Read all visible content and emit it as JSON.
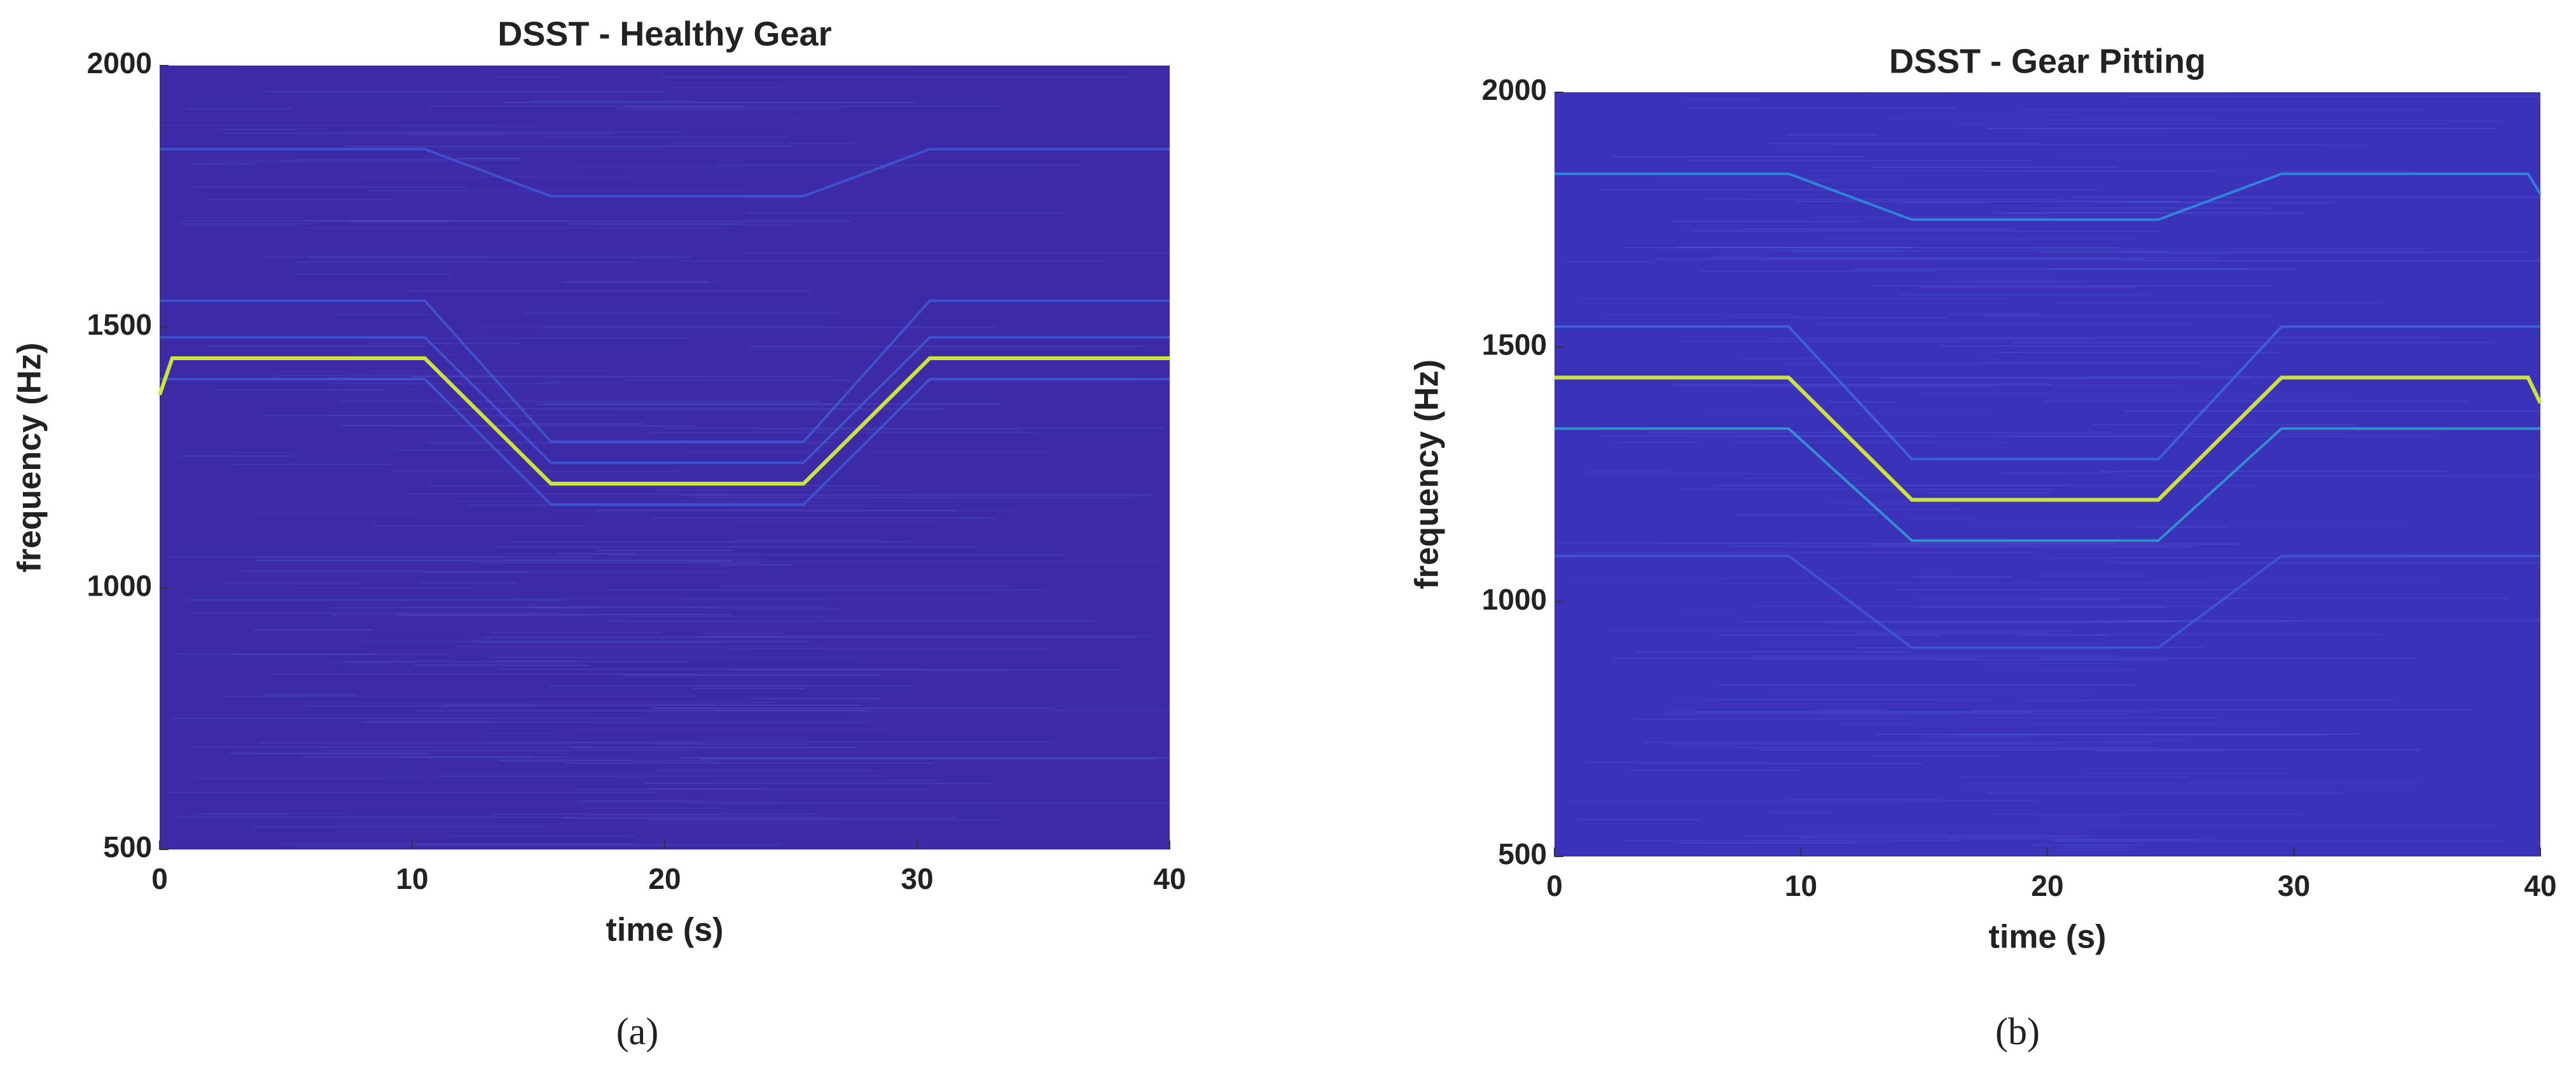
{
  "chart_data": [
    {
      "type": "spectrogram",
      "title": "DSST - Healthy Gear",
      "xlabel": "time (s)",
      "ylabel": "frequency (Hz)",
      "panel_label": "(a)",
      "xlim": [
        0,
        40
      ],
      "ylim": [
        500,
        2000
      ],
      "xticks": [
        0,
        10,
        20,
        30,
        40
      ],
      "yticks": [
        500,
        1000,
        1500,
        2000
      ],
      "background": "#3d2aa6",
      "x": [
        0,
        0.5,
        10.5,
        15.5,
        25.5,
        30.5,
        40
      ],
      "series": [
        {
          "color": "#3f5fd8",
          "values": [
            1840,
            1840,
            1840,
            1750,
            1750,
            1840,
            1840
          ]
        },
        {
          "color": "#3f5fd8",
          "values": [
            1550,
            1550,
            1550,
            1280,
            1280,
            1550,
            1550
          ]
        },
        {
          "color": "#3f5fd8",
          "values": [
            1480,
            1480,
            1480,
            1240,
            1240,
            1480,
            1480
          ]
        },
        {
          "color": "#3f5fd8",
          "values": [
            1400,
            1400,
            1400,
            1160,
            1160,
            1400,
            1400
          ]
        },
        {
          "color": "#cde23a",
          "values": [
            1370,
            1440,
            1440,
            1200,
            1200,
            1440,
            1440
          ]
        }
      ]
    },
    {
      "type": "spectrogram",
      "title": "DSST - Gear Pitting",
      "xlabel": "time (s)",
      "ylabel": "frequency (Hz)",
      "panel_label": "(b)",
      "xlim": [
        0,
        40
      ],
      "ylim": [
        500,
        2000
      ],
      "xticks": [
        0,
        10,
        20,
        30,
        40
      ],
      "yticks": [
        500,
        1000,
        1500,
        2000
      ],
      "background": "#3a32b8",
      "x": [
        0,
        9.5,
        14.5,
        24.5,
        29.5,
        39.5,
        40
      ],
      "series": [
        {
          "color": "#2e9ee6",
          "values": [
            1840,
            1840,
            1750,
            1750,
            1840,
            1840,
            1800
          ]
        },
        {
          "color": "#3f6fe0",
          "values": [
            1540,
            1540,
            1280,
            1280,
            1540,
            1540,
            1540
          ]
        },
        {
          "color": "#2fb0d8",
          "values": [
            1340,
            1340,
            1120,
            1120,
            1340,
            1340,
            1340
          ]
        },
        {
          "color": "#3f5fd8",
          "values": [
            1090,
            1090,
            910,
            910,
            1090,
            1090,
            1090
          ]
        },
        {
          "color": "#cde23a",
          "values": [
            1440,
            1440,
            1200,
            1200,
            1440,
            1440,
            1390
          ]
        }
      ]
    }
  ]
}
